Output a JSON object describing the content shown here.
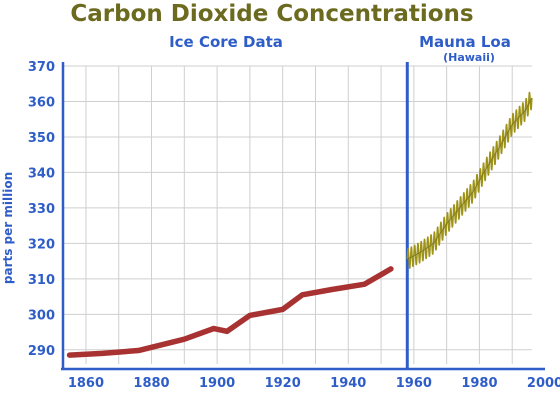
{
  "chart_data": {
    "type": "line",
    "title": "Carbon Dioxide Concentrations",
    "ylabel": "parts per million",
    "xlabel": "",
    "xlim": [
      1853,
      2000
    ],
    "ylim": [
      286,
      370
    ],
    "xticks": [
      1860,
      1880,
      1900,
      1920,
      1940,
      1960,
      1980,
      2000
    ],
    "yticks": [
      290,
      300,
      310,
      320,
      330,
      340,
      350,
      360,
      370
    ],
    "grid": true,
    "divider_year": 1958,
    "sections": [
      {
        "label": "Ice Core Data",
        "note": ""
      },
      {
        "label": "Mauna Loa",
        "note": "(Hawaii)"
      }
    ],
    "series": [
      {
        "name": "Ice Core Data",
        "color": "#a83232",
        "x": [
          1855,
          1865,
          1876,
          1890,
          1899,
          1903,
          1910,
          1920,
          1926,
          1935,
          1945,
          1953
        ],
        "values": [
          288.5,
          289.0,
          289.8,
          293.0,
          296.0,
          295.2,
          299.7,
          301.4,
          305.5,
          307.0,
          308.5,
          312.8
        ]
      },
      {
        "name": "Mauna Loa",
        "color": "#9e9318",
        "seasonal_amplitude": 3,
        "x": [
          1958,
          1962,
          1966,
          1970,
          1974,
          1978,
          1982,
          1986,
          1990,
          1994,
          1996
        ],
        "values": [
          315.5,
          317.5,
          320.0,
          325.5,
          330.0,
          334.5,
          341.0,
          347.0,
          353.5,
          357.5,
          361.0
        ]
      }
    ]
  }
}
